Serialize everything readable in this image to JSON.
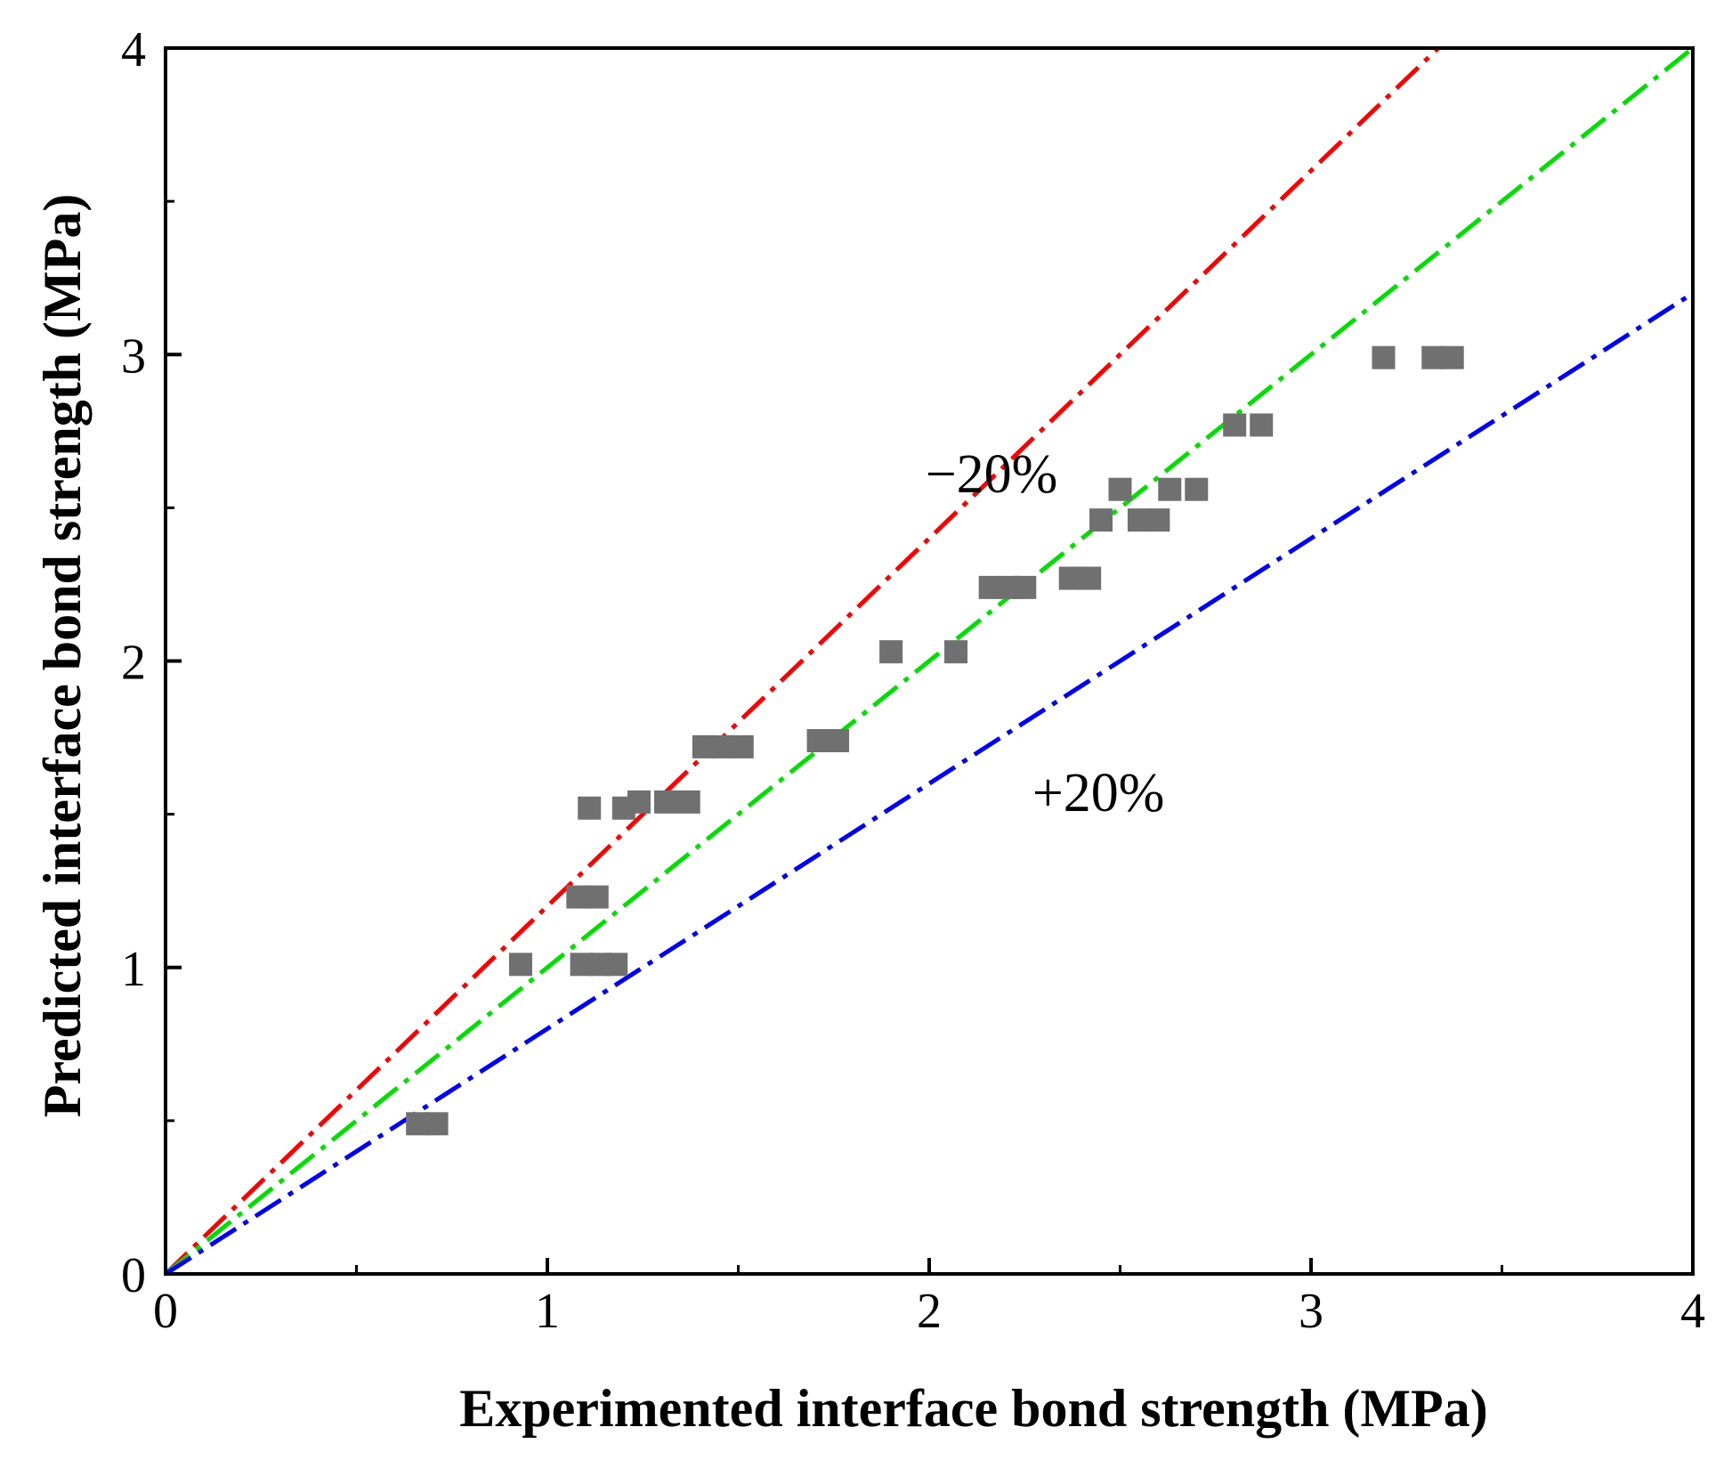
{
  "chart_data": {
    "type": "scatter",
    "title": "",
    "xlabel": "Experimented interface bond strength (MPa)",
    "ylabel": "Predicted interface bond strength (MPa)",
    "xlim": [
      0,
      4
    ],
    "ylim": [
      0,
      4
    ],
    "major_ticks": [
      0,
      1,
      2,
      3,
      4
    ],
    "major_tick_labels": [
      "0",
      "1",
      "2",
      "3",
      "4"
    ],
    "minor_ticks": [
      0.5,
      1.5,
      2.5,
      3.5
    ],
    "grid": false,
    "marker": "square",
    "marker_color": "#707070",
    "points": [
      {
        "x": 0.66,
        "y": 0.49
      },
      {
        "x": 0.71,
        "y": 0.49
      },
      {
        "x": 0.93,
        "y": 1.01
      },
      {
        "x": 1.09,
        "y": 1.01
      },
      {
        "x": 1.14,
        "y": 1.01
      },
      {
        "x": 1.18,
        "y": 1.01
      },
      {
        "x": 1.08,
        "y": 1.23
      },
      {
        "x": 1.13,
        "y": 1.23
      },
      {
        "x": 1.11,
        "y": 1.52
      },
      {
        "x": 1.2,
        "y": 1.52
      },
      {
        "x": 1.24,
        "y": 1.54
      },
      {
        "x": 1.31,
        "y": 1.54
      },
      {
        "x": 1.37,
        "y": 1.54
      },
      {
        "x": 1.41,
        "y": 1.72
      },
      {
        "x": 1.46,
        "y": 1.72
      },
      {
        "x": 1.51,
        "y": 1.72
      },
      {
        "x": 1.71,
        "y": 1.74
      },
      {
        "x": 1.76,
        "y": 1.74
      },
      {
        "x": 1.9,
        "y": 2.03
      },
      {
        "x": 2.07,
        "y": 2.03
      },
      {
        "x": 2.16,
        "y": 2.24
      },
      {
        "x": 2.21,
        "y": 2.24
      },
      {
        "x": 2.25,
        "y": 2.24
      },
      {
        "x": 2.37,
        "y": 2.27
      },
      {
        "x": 2.42,
        "y": 2.27
      },
      {
        "x": 2.45,
        "y": 2.46
      },
      {
        "x": 2.5,
        "y": 2.56
      },
      {
        "x": 2.55,
        "y": 2.46
      },
      {
        "x": 2.6,
        "y": 2.46
      },
      {
        "x": 2.63,
        "y": 2.56
      },
      {
        "x": 2.7,
        "y": 2.56
      },
      {
        "x": 2.8,
        "y": 2.77
      },
      {
        "x": 2.87,
        "y": 2.77
      },
      {
        "x": 3.19,
        "y": 2.99
      },
      {
        "x": 3.32,
        "y": 2.99
      },
      {
        "x": 3.37,
        "y": 2.99
      }
    ],
    "reference_lines": [
      {
        "name": "-20% bound",
        "slope": 1.2,
        "color": "#ff0000"
      },
      {
        "name": "1:1 line",
        "slope": 1.0,
        "color": "#00e000"
      },
      {
        "name": "+20% bound",
        "slope": 0.8,
        "color": "#0000ff"
      }
    ],
    "annotations": [
      {
        "text": "−20%",
        "x": 1.99,
        "y": 2.55
      },
      {
        "text": "+20%",
        "x": 2.27,
        "y": 1.51
      }
    ]
  }
}
